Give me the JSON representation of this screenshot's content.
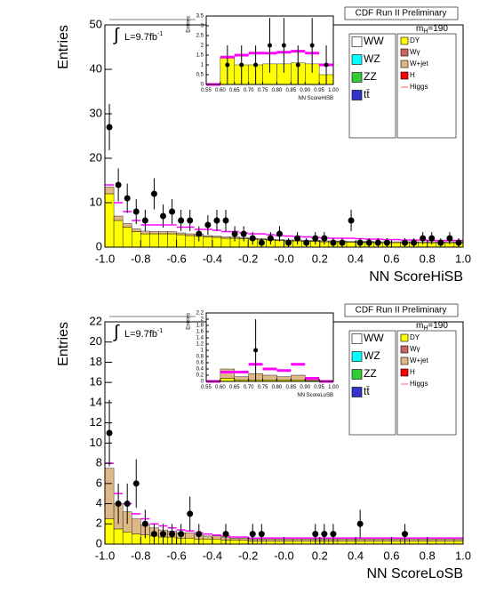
{
  "chart_data": [
    {
      "type": "histogram",
      "title": "CDF Run II Preliminary",
      "mass_label": "m",
      "mass_sub": "H",
      "mass_value": "=190",
      "integral": "∫",
      "lumi": "L=9.7fb",
      "lumi_exp": "-1",
      "xlabel": "NN ScoreHiSB",
      "ylabel": "Entries",
      "bins": [
        -1,
        -0.95,
        -0.9,
        -0.85,
        -0.8,
        -0.75,
        -0.7,
        -0.65,
        -0.6,
        -0.55,
        -0.5,
        -0.45,
        -0.4,
        -0.35,
        -0.3,
        -0.25,
        -0.2,
        -0.15,
        -0.1,
        -0.05,
        0,
        0.05,
        0.1,
        0.15,
        0.2,
        0.25,
        0.3,
        0.35,
        0.4,
        0.45,
        0.5,
        0.55,
        0.6,
        0.65,
        0.7,
        0.75,
        0.8,
        0.85,
        0.9,
        0.95,
        1
      ],
      "xlim": [
        -1,
        1
      ],
      "ylim": [
        0,
        50
      ],
      "xticks": [
        {
          "value": -1,
          "label": "-1.0"
        },
        -0.8,
        -0.6,
        -0.4,
        -0.2,
        {
          "value": 0,
          "label": "-0.0"
        },
        0.2,
        0.4,
        0.6,
        0.8,
        {
          "value": 1,
          "label": "1.0"
        }
      ],
      "yticks": [
        0,
        10,
        20,
        30,
        40,
        50
      ],
      "series": [
        {
          "color": "#ffff00",
          "values": [
            12,
            6,
            4.5,
            3.5,
            3,
            3,
            3,
            3,
            2.8,
            2.6,
            2.5,
            2.3,
            2.2,
            2,
            2,
            1.9,
            1.8,
            1.7,
            1.6,
            1.5,
            1.4,
            1.4,
            1.3,
            1.3,
            1.2,
            1.2,
            1.2,
            1.1,
            1.1,
            1.1,
            1,
            1,
            1,
            1,
            1,
            1,
            1,
            1,
            1,
            1
          ]
        },
        {
          "color": "#deb887",
          "values": [
            1.5,
            1,
            0.8,
            0.6,
            0.6,
            0.5,
            0.5,
            0.5,
            0.4,
            0.4,
            0.4,
            0.3,
            0.3,
            0.3,
            0.3,
            0.3,
            0.2,
            0.2,
            0.2,
            0.2,
            0.2,
            0.2,
            0.2,
            0.2,
            0.2,
            0.2,
            0.2,
            0.2,
            0.2,
            0.2,
            0.2,
            0.2,
            0.2,
            0.2,
            0.2,
            0.2,
            0.2,
            0.2,
            0.2,
            0.2
          ]
        }
      ],
      "line": {
        "color": "#ff00ff",
        "values": [
          14,
          10,
          8,
          6,
          5,
          5,
          5,
          5,
          4.5,
          4.5,
          4,
          4,
          3.8,
          3.5,
          3.5,
          3.2,
          3,
          3,
          2.8,
          2.6,
          2.5,
          2.4,
          2.3,
          2.2,
          2.1,
          2,
          2,
          2,
          1.9,
          1.8,
          1.8,
          1.7,
          1.7,
          1.6,
          1.6,
          1.6,
          1.5,
          1.5,
          1.5,
          1.5
        ]
      },
      "points": {
        "values": [
          27,
          14,
          11,
          8,
          6,
          12,
          7,
          8,
          6,
          6,
          3,
          5,
          6,
          6,
          3,
          3,
          2,
          1,
          2,
          3,
          1,
          2,
          1,
          2,
          2,
          1,
          1,
          6,
          1,
          1,
          1,
          1,
          0,
          1,
          1,
          2,
          2,
          1,
          2,
          1
        ],
        "errors": [
          5.2,
          3.7,
          3.3,
          2.8,
          2.4,
          3.5,
          2.6,
          2.8,
          2.4,
          2.4,
          1.7,
          2.2,
          2.4,
          2.4,
          1.7,
          1.7,
          1.4,
          1,
          1.4,
          1.7,
          1,
          1.4,
          1,
          1.4,
          1.4,
          1,
          1,
          2.4,
          1,
          1,
          1,
          1,
          0,
          1,
          1,
          1.4,
          1.4,
          1,
          1.4,
          1
        ]
      },
      "legend": [
        {
          "name": "WW",
          "color": "#ffffff"
        },
        {
          "name": "WZ",
          "color": "#00ffff"
        },
        {
          "name": "ZZ",
          "color": "#33cc33"
        },
        {
          "name": "tt̄",
          "color": "#3333cc"
        },
        {
          "name": "DY",
          "color": "#ffff00"
        },
        {
          "name": "Wγ",
          "color": "#cc6666"
        },
        {
          "name": "W+jet",
          "color": "#deb887"
        },
        {
          "name": "H",
          "color": "#ff0000"
        },
        {
          "name": "Higgs",
          "color": "#ff6666",
          "style": "line"
        }
      ],
      "inset": {
        "xlabel": "NN ScoreHiSB",
        "ylabel": "Entries",
        "bins": [
          0.55,
          0.6,
          0.65,
          0.7,
          0.75,
          0.8,
          0.85,
          0.9,
          0.95,
          1
        ],
        "xlim": [
          0.55,
          1
        ],
        "ylim": [
          0,
          3.5
        ],
        "xticks": [
          0.55,
          {
            "value": 0.6,
            "label": "0.60"
          },
          0.65,
          {
            "value": 0.7,
            "label": "0.70"
          },
          0.75,
          {
            "value": 0.8,
            "label": "0.80"
          },
          0.85,
          {
            "value": 0.9,
            "label": "0.90"
          },
          0.95,
          {
            "value": 1,
            "label": "1.00"
          }
        ],
        "yticks": [
          0,
          0.5,
          1,
          1.5,
          2,
          2.5,
          3,
          3.5
        ],
        "series": [
          {
            "color": "#ffff00",
            "values": [
              0,
              1.4,
              1,
              1,
              1.05,
              1.05,
              1.1,
              1.05,
              0.5
            ]
          }
        ],
        "line": {
          "color": "#ff00ff",
          "values": [
            0,
            1.4,
            1.5,
            1.6,
            1.6,
            1.65,
            1.7,
            1.6,
            1
          ]
        },
        "points": {
          "values": [
            0,
            1,
            1,
            1,
            2,
            2,
            1,
            2,
            1
          ],
          "errors": [
            0,
            1,
            1,
            1,
            1.4,
            1.4,
            1,
            1.4,
            1
          ]
        }
      }
    },
    {
      "type": "histogram",
      "title": "CDF Run II Preliminary",
      "mass_label": "m",
      "mass_sub": "H",
      "mass_value": "=190",
      "integral": "∫",
      "lumi": "L=9.7fb",
      "lumi_exp": "-1",
      "xlabel": "NN ScoreLoSB",
      "ylabel": "Entries",
      "bins": [
        -1,
        -0.95,
        -0.9,
        -0.85,
        -0.8,
        -0.75,
        -0.7,
        -0.65,
        -0.6,
        -0.55,
        -0.5,
        -0.45,
        -0.4,
        -0.35,
        -0.3,
        -0.25,
        -0.2,
        -0.15,
        -0.1,
        -0.05,
        0,
        0.05,
        0.1,
        0.15,
        0.2,
        0.25,
        0.3,
        0.35,
        0.4,
        0.45,
        0.5,
        0.55,
        0.6,
        0.65,
        0.7,
        0.75,
        0.8,
        0.85,
        0.9,
        0.95,
        1
      ],
      "xlim": [
        -1,
        1
      ],
      "ylim": [
        0,
        22
      ],
      "xticks": [
        {
          "value": -1,
          "label": "-1.0"
        },
        -0.8,
        -0.6,
        -0.4,
        -0.2,
        {
          "value": 0,
          "label": "-0.0"
        },
        0.2,
        0.4,
        0.6,
        0.8,
        {
          "value": 1,
          "label": "1.0"
        }
      ],
      "yticks": [
        0,
        2,
        4,
        6,
        8,
        10,
        12,
        14,
        16,
        18,
        20,
        22
      ],
      "series": [
        {
          "color": "#ffff00",
          "values": [
            2.5,
            1.5,
            1.2,
            1,
            0.9,
            0.8,
            0.7,
            0.7,
            0.6,
            0.6,
            0.5,
            0.5,
            0.5,
            0.4,
            0.4,
            0.4,
            0.3,
            0.3,
            0.3,
            0.3,
            0.3,
            0.3,
            0.3,
            0.3,
            0.3,
            0.3,
            0.3,
            0.3,
            0.3,
            0.3,
            0.3,
            0.3,
            0.3,
            0.3,
            0.3,
            0.3,
            0.3,
            0.3,
            0.3,
            0.3
          ]
        },
        {
          "color": "#deb887",
          "values": [
            5,
            2.5,
            2,
            1.5,
            1,
            0.8,
            0.7,
            0.6,
            0.5,
            0.5,
            0.4,
            0.3,
            0.3,
            0.3,
            0.2,
            0.2,
            0.2,
            0.2,
            0.2,
            0.2,
            0.2,
            0.2,
            0.2,
            0.2,
            0.2,
            0.2,
            0.2,
            0.2,
            0.2,
            0.2,
            0.2,
            0.2,
            0.2,
            0.2,
            0.2,
            0.2,
            0.2,
            0.2,
            0.2,
            0.2
          ]
        }
      ],
      "line": {
        "color": "#ff00ff",
        "values": [
          8,
          5,
          4,
          3,
          2.5,
          2,
          1.8,
          1.6,
          1.4,
          1.3,
          1.1,
          1,
          0.9,
          0.8,
          0.7,
          0.7,
          0.6,
          0.6,
          0.6,
          0.6,
          0.6,
          0.6,
          0.6,
          0.6,
          0.6,
          0.6,
          0.6,
          0.6,
          0.6,
          0.6,
          0.6,
          0.6,
          0.6,
          0.6,
          0.6,
          0.6,
          0.6,
          0.6,
          0.6,
          0.6
        ]
      },
      "points": {
        "values": [
          11,
          4,
          4,
          6,
          2,
          1,
          1,
          1,
          1,
          3,
          1,
          0,
          0,
          1,
          0,
          0,
          1,
          1,
          0,
          0,
          0,
          0,
          0,
          1,
          1,
          1,
          0,
          0,
          2,
          0,
          0,
          0,
          0,
          1,
          0,
          0,
          0,
          0,
          0,
          0
        ],
        "errors": [
          3.3,
          2,
          2,
          2.4,
          1.4,
          1,
          1,
          1,
          1,
          1.7,
          1,
          0,
          0,
          1,
          0,
          0,
          1,
          1,
          0,
          0,
          0,
          0,
          0,
          1,
          1,
          1,
          0,
          0,
          1.4,
          0,
          0,
          0,
          0,
          1,
          0,
          0,
          0,
          0,
          0,
          0
        ]
      },
      "legend": [
        {
          "name": "WW",
          "color": "#ffffff"
        },
        {
          "name": "WZ",
          "color": "#00ffff"
        },
        {
          "name": "ZZ",
          "color": "#33cc33"
        },
        {
          "name": "tt̄",
          "color": "#3333cc"
        },
        {
          "name": "DY",
          "color": "#ffff00"
        },
        {
          "name": "Wγ",
          "color": "#cc6666"
        },
        {
          "name": "W+jet",
          "color": "#deb887"
        },
        {
          "name": "H",
          "color": "#ff0000"
        },
        {
          "name": "Higgs",
          "color": "#ff6666",
          "style": "line"
        }
      ],
      "inset": {
        "xlabel": "NN ScoreLoSB",
        "ylabel": "Entries",
        "bins": [
          0.55,
          0.6,
          0.65,
          0.7,
          0.75,
          0.8,
          0.85,
          0.9,
          0.95,
          1
        ],
        "xlim": [
          0.55,
          1
        ],
        "ylim": [
          0,
          2.2
        ],
        "xticks": [
          0.55,
          {
            "value": 0.6,
            "label": "0.60"
          },
          0.65,
          {
            "value": 0.7,
            "label": "0.70"
          },
          0.75,
          {
            "value": 0.8,
            "label": "0.80"
          },
          0.85,
          {
            "value": 0.9,
            "label": "0.90"
          },
          0.95,
          {
            "value": 1,
            "label": "1.00"
          }
        ],
        "yticks": [
          0,
          0.2,
          0.4,
          0.6,
          0.8,
          1,
          1.2,
          1.4,
          1.6,
          1.8,
          2,
          2.2
        ],
        "series": [
          {
            "color": "#ffff00",
            "values": [
              0,
              0.1,
              0.05,
              0.05,
              0.05,
              0.05,
              0.05,
              0.03,
              0
            ]
          },
          {
            "color": "#deb887",
            "values": [
              0,
              0.3,
              0.1,
              0.2,
              0.15,
              0.1,
              0.15,
              0.05,
              0
            ]
          }
        ],
        "line": {
          "color": "#ff00ff",
          "values": [
            0,
            0.3,
            0.3,
            0.55,
            0.4,
            0.35,
            0.55,
            0.1,
            0
          ]
        },
        "points": {
          "values": [
            0,
            0,
            0,
            1,
            0,
            0,
            0,
            0,
            0
          ],
          "errors": [
            0,
            0,
            0,
            1,
            0,
            0,
            0,
            0,
            0
          ]
        }
      }
    }
  ]
}
